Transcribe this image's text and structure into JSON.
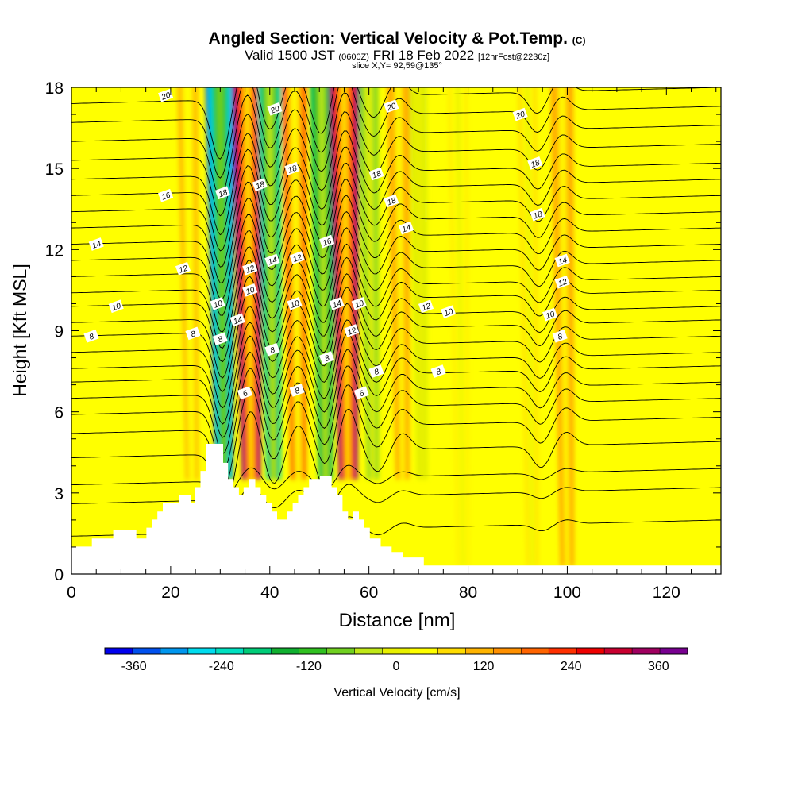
{
  "header": {
    "title": "Angled Section: Vertical Velocity & Pot.Temp.",
    "copyright": "(C)",
    "valid_prefix": "Valid 1500 JST",
    "valid_utc": "(0600Z)",
    "valid_date": "FRI 18 Feb 2022",
    "forecast": "[12hrFcst@2230z]",
    "slice": "slice X,Y= 92,59@135°"
  },
  "chart_data": {
    "type": "heatmap",
    "title": "Angled Section: Vertical Velocity & Pot.Temp.",
    "xlabel": "Distance [nm]",
    "ylabel": "Height [Kft MSL]",
    "xlim": [
      0,
      131
    ],
    "ylim": [
      0,
      18
    ],
    "x_ticks": [
      "0",
      "20",
      "40",
      "60",
      "80",
      "100",
      "120"
    ],
    "x_tick_values": [
      0,
      20,
      40,
      60,
      80,
      100,
      120
    ],
    "y_ticks": [
      "0",
      "3",
      "6",
      "9",
      "12",
      "15",
      "18"
    ],
    "y_tick_values": [
      0,
      3,
      6,
      9,
      12,
      15,
      18
    ],
    "colorbar": {
      "label": "Vertical Velocity [cm/s]",
      "min": -400,
      "max": 400,
      "tick_labels": [
        "-360",
        "-240",
        "-120",
        "0",
        "120",
        "240",
        "360"
      ],
      "tick_values": [
        -360,
        -240,
        -120,
        0,
        120,
        240,
        360
      ],
      "colors": [
        "#0000ee",
        "#0050ee",
        "#0096ee",
        "#00dcee",
        "#00e0c0",
        "#00cc78",
        "#10b030",
        "#30c020",
        "#70d020",
        "#c0e818",
        "#e8f000",
        "#ffff00",
        "#ffdc00",
        "#ffb400",
        "#ff9000",
        "#ff6400",
        "#ff3000",
        "#ee0000",
        "#c80030",
        "#a00060",
        "#780090"
      ]
    },
    "velocity_bands": [
      {
        "x": 31,
        "velocity": -330
      },
      {
        "x": 36.5,
        "velocity": 380
      },
      {
        "x": 41,
        "velocity": -220
      },
      {
        "x": 46,
        "velocity": 220
      },
      {
        "x": 51.5,
        "velocity": -200
      },
      {
        "x": 56,
        "velocity": 380
      },
      {
        "x": 61,
        "velocity": -80
      },
      {
        "x": 67,
        "velocity": 160
      },
      {
        "x": 71,
        "velocity": -20
      },
      {
        "x": 79,
        "velocity": 70
      },
      {
        "x": 93,
        "velocity": 80
      },
      {
        "x": 100,
        "velocity": 160
      },
      {
        "x": 24.5,
        "velocity": 120
      }
    ],
    "theta_levels": [
      6,
      8,
      10,
      12,
      14,
      16,
      18,
      20
    ],
    "contour_labels": [
      {
        "text": "20",
        "x": 19,
        "y": 17.7
      },
      {
        "text": "20",
        "x": 41,
        "y": 17.2
      },
      {
        "text": "20",
        "x": 64.5,
        "y": 17.3
      },
      {
        "text": "20",
        "x": 90.5,
        "y": 17.0
      },
      {
        "text": "18",
        "x": 30.5,
        "y": 14.1
      },
      {
        "text": "18",
        "x": 38,
        "y": 14.4
      },
      {
        "text": "18",
        "x": 44.5,
        "y": 15.0
      },
      {
        "text": "18",
        "x": 61.5,
        "y": 14.8
      },
      {
        "text": "18",
        "x": 64.5,
        "y": 13.8
      },
      {
        "text": "18",
        "x": 93.5,
        "y": 15.2
      },
      {
        "text": "18",
        "x": 94,
        "y": 13.3
      },
      {
        "text": "16",
        "x": 19,
        "y": 14.0
      },
      {
        "text": "16",
        "x": 51.5,
        "y": 12.3
      },
      {
        "text": "14",
        "x": 5,
        "y": 12.2
      },
      {
        "text": "14",
        "x": 40.5,
        "y": 11.6
      },
      {
        "text": "14",
        "x": 67.5,
        "y": 12.8
      },
      {
        "text": "14",
        "x": 33.5,
        "y": 9.4
      },
      {
        "text": "14",
        "x": 53.5,
        "y": 10.0
      },
      {
        "text": "14",
        "x": 99,
        "y": 11.6
      },
      {
        "text": "12",
        "x": 22.5,
        "y": 11.3
      },
      {
        "text": "12",
        "x": 36,
        "y": 11.3
      },
      {
        "text": "12",
        "x": 45.5,
        "y": 11.7
      },
      {
        "text": "12",
        "x": 56.5,
        "y": 9.0
      },
      {
        "text": "12",
        "x": 71.5,
        "y": 9.9
      },
      {
        "text": "12",
        "x": 99,
        "y": 10.8
      },
      {
        "text": "10",
        "x": 9,
        "y": 9.9
      },
      {
        "text": "10",
        "x": 29.5,
        "y": 10.0
      },
      {
        "text": "10",
        "x": 36,
        "y": 10.5
      },
      {
        "text": "10",
        "x": 45,
        "y": 10.0
      },
      {
        "text": "10",
        "x": 58,
        "y": 10.0
      },
      {
        "text": "10",
        "x": 76,
        "y": 9.7
      },
      {
        "text": "10",
        "x": 96.5,
        "y": 9.6
      },
      {
        "text": "8",
        "x": 4,
        "y": 8.8
      },
      {
        "text": "8",
        "x": 30,
        "y": 8.7
      },
      {
        "text": "8",
        "x": 40.5,
        "y": 8.3
      },
      {
        "text": "8",
        "x": 51.5,
        "y": 8.0
      },
      {
        "text": "8",
        "x": 61.5,
        "y": 7.5
      },
      {
        "text": "8",
        "x": 74,
        "y": 7.5
      },
      {
        "text": "8",
        "x": 98.5,
        "y": 8.8
      },
      {
        "text": "8",
        "x": 24.5,
        "y": 8.9
      },
      {
        "text": "8",
        "x": 45.5,
        "y": 6.8
      },
      {
        "text": "6",
        "x": 35,
        "y": 6.7
      },
      {
        "text": "6",
        "x": 58.5,
        "y": 6.7
      }
    ],
    "terrain_heights": [
      [
        0,
        1.0
      ],
      [
        4.2,
        1.0
      ],
      [
        4.2,
        1.3
      ],
      [
        8.5,
        1.3
      ],
      [
        8.5,
        1.6
      ],
      [
        13,
        1.6
      ],
      [
        13,
        1.3
      ],
      [
        15.2,
        1.3
      ],
      [
        15.2,
        1.7
      ],
      [
        16.3,
        1.7
      ],
      [
        16.3,
        2.0
      ],
      [
        17.4,
        2.0
      ],
      [
        17.4,
        2.3
      ],
      [
        18.5,
        2.3
      ],
      [
        18.5,
        2.6
      ],
      [
        20.7,
        2.6
      ],
      [
        20.7,
        2.6
      ],
      [
        21.8,
        2.6
      ],
      [
        21.8,
        2.9
      ],
      [
        24.0,
        2.9
      ],
      [
        24.0,
        2.6
      ],
      [
        25.0,
        2.6
      ],
      [
        25.0,
        3.2
      ],
      [
        26.1,
        3.2
      ],
      [
        26.1,
        3.8
      ],
      [
        27.2,
        3.8
      ],
      [
        27.2,
        4.8
      ],
      [
        30.5,
        4.8
      ],
      [
        30.5,
        4.1
      ],
      [
        31.5,
        4.1
      ],
      [
        31.5,
        3.5
      ],
      [
        32.6,
        3.5
      ],
      [
        32.6,
        3.2
      ],
      [
        33.7,
        3.2
      ],
      [
        33.7,
        2.9
      ],
      [
        34.8,
        2.9
      ],
      [
        34.8,
        3.2
      ],
      [
        35.9,
        3.2
      ],
      [
        35.9,
        3.5
      ],
      [
        37.0,
        3.5
      ],
      [
        37.0,
        3.2
      ],
      [
        38.1,
        3.2
      ],
      [
        38.1,
        2.9
      ],
      [
        39.2,
        2.9
      ],
      [
        39.2,
        2.6
      ],
      [
        40.3,
        2.6
      ],
      [
        40.3,
        2.3
      ],
      [
        41.4,
        2.3
      ],
      [
        41.4,
        2.0
      ],
      [
        43.6,
        2.0
      ],
      [
        43.6,
        2.3
      ],
      [
        44.7,
        2.3
      ],
      [
        44.7,
        2.6
      ],
      [
        45.8,
        2.6
      ],
      [
        45.8,
        2.9
      ],
      [
        46.9,
        2.9
      ],
      [
        46.9,
        3.2
      ],
      [
        48.0,
        3.2
      ],
      [
        48.0,
        3.5
      ],
      [
        50.2,
        3.5
      ],
      [
        50.2,
        3.6
      ],
      [
        52.4,
        3.6
      ],
      [
        52.4,
        3.2
      ],
      [
        53.5,
        3.2
      ],
      [
        53.5,
        2.9
      ],
      [
        54.6,
        2.9
      ],
      [
        54.6,
        2.3
      ],
      [
        55.7,
        2.3
      ],
      [
        55.7,
        2.0
      ],
      [
        56.8,
        2.0
      ],
      [
        56.8,
        2.3
      ],
      [
        57.9,
        2.3
      ],
      [
        57.9,
        2.0
      ],
      [
        59.0,
        2.0
      ],
      [
        59.0,
        1.7
      ],
      [
        60.1,
        1.7
      ],
      [
        60.1,
        1.3
      ],
      [
        62.3,
        1.3
      ],
      [
        62.3,
        1.0
      ],
      [
        64.5,
        1.0
      ],
      [
        64.5,
        0.8
      ],
      [
        66.7,
        0.8
      ],
      [
        66.7,
        0.6
      ],
      [
        71.0,
        0.6
      ],
      [
        71.0,
        0.3
      ],
      [
        131,
        0.3
      ],
      [
        131,
        0
      ]
    ]
  }
}
